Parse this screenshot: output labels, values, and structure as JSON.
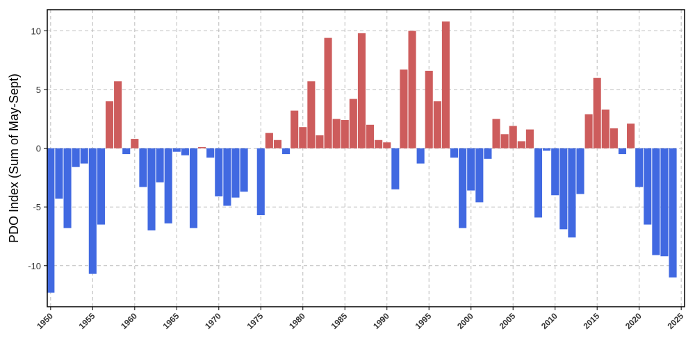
{
  "chart_data": {
    "type": "bar",
    "title": "",
    "xlabel": "",
    "ylabel": "PDO Index (Sum of May-Sept)",
    "x": [
      1950,
      1951,
      1952,
      1953,
      1954,
      1955,
      1956,
      1957,
      1958,
      1959,
      1960,
      1961,
      1962,
      1963,
      1964,
      1965,
      1966,
      1967,
      1968,
      1969,
      1970,
      1971,
      1972,
      1973,
      1974,
      1975,
      1976,
      1977,
      1978,
      1979,
      1980,
      1981,
      1982,
      1983,
      1984,
      1985,
      1986,
      1987,
      1988,
      1989,
      1990,
      1991,
      1992,
      1993,
      1994,
      1995,
      1996,
      1997,
      1998,
      1999,
      2000,
      2001,
      2002,
      2003,
      2004,
      2005,
      2006,
      2007,
      2008,
      2009,
      2010,
      2011,
      2012,
      2013,
      2014,
      2015,
      2016,
      2017,
      2018,
      2019,
      2020,
      2021,
      2022,
      2023,
      2024
    ],
    "values": [
      -12.3,
      -4.3,
      -6.8,
      -1.6,
      -1.3,
      -10.7,
      -6.5,
      4.0,
      5.7,
      -0.5,
      0.8,
      -3.3,
      -7.0,
      -2.9,
      -6.4,
      -0.3,
      -0.6,
      -6.8,
      0.1,
      -0.8,
      -4.1,
      -4.9,
      -4.2,
      -3.7,
      0.0,
      -5.7,
      1.3,
      0.7,
      -0.5,
      3.2,
      1.8,
      5.7,
      1.1,
      9.4,
      2.5,
      2.4,
      4.2,
      9.8,
      2.0,
      0.7,
      0.5,
      -3.5,
      6.7,
      10.0,
      -1.3,
      6.6,
      4.0,
      10.8,
      -0.8,
      -6.8,
      -3.6,
      -4.6,
      -0.9,
      2.5,
      1.2,
      1.9,
      0.6,
      1.6,
      -5.9,
      -0.2,
      -4.0,
      -6.9,
      -7.6,
      -3.9,
      2.9,
      6.0,
      3.3,
      1.7,
      -0.5,
      2.1,
      -3.3,
      -6.5,
      -9.1,
      -9.2,
      -11.0
    ],
    "xticks": [
      "1950",
      "1955",
      "1960",
      "1965",
      "1970",
      "1975",
      "1980",
      "1985",
      "1990",
      "1995",
      "2000",
      "2005",
      "2010",
      "2015",
      "2020",
      "2025"
    ],
    "yticks": [
      "-10",
      "-5",
      "0",
      "5",
      "10"
    ],
    "xlim": [
      1949.6,
      2025.4
    ],
    "ylim": [
      -13.5,
      11.8
    ],
    "grid": true,
    "colors": {
      "positive": "#cd5c5c",
      "negative": "#4169e1",
      "grid": "#bbbbbb",
      "axis": "#000000"
    }
  }
}
